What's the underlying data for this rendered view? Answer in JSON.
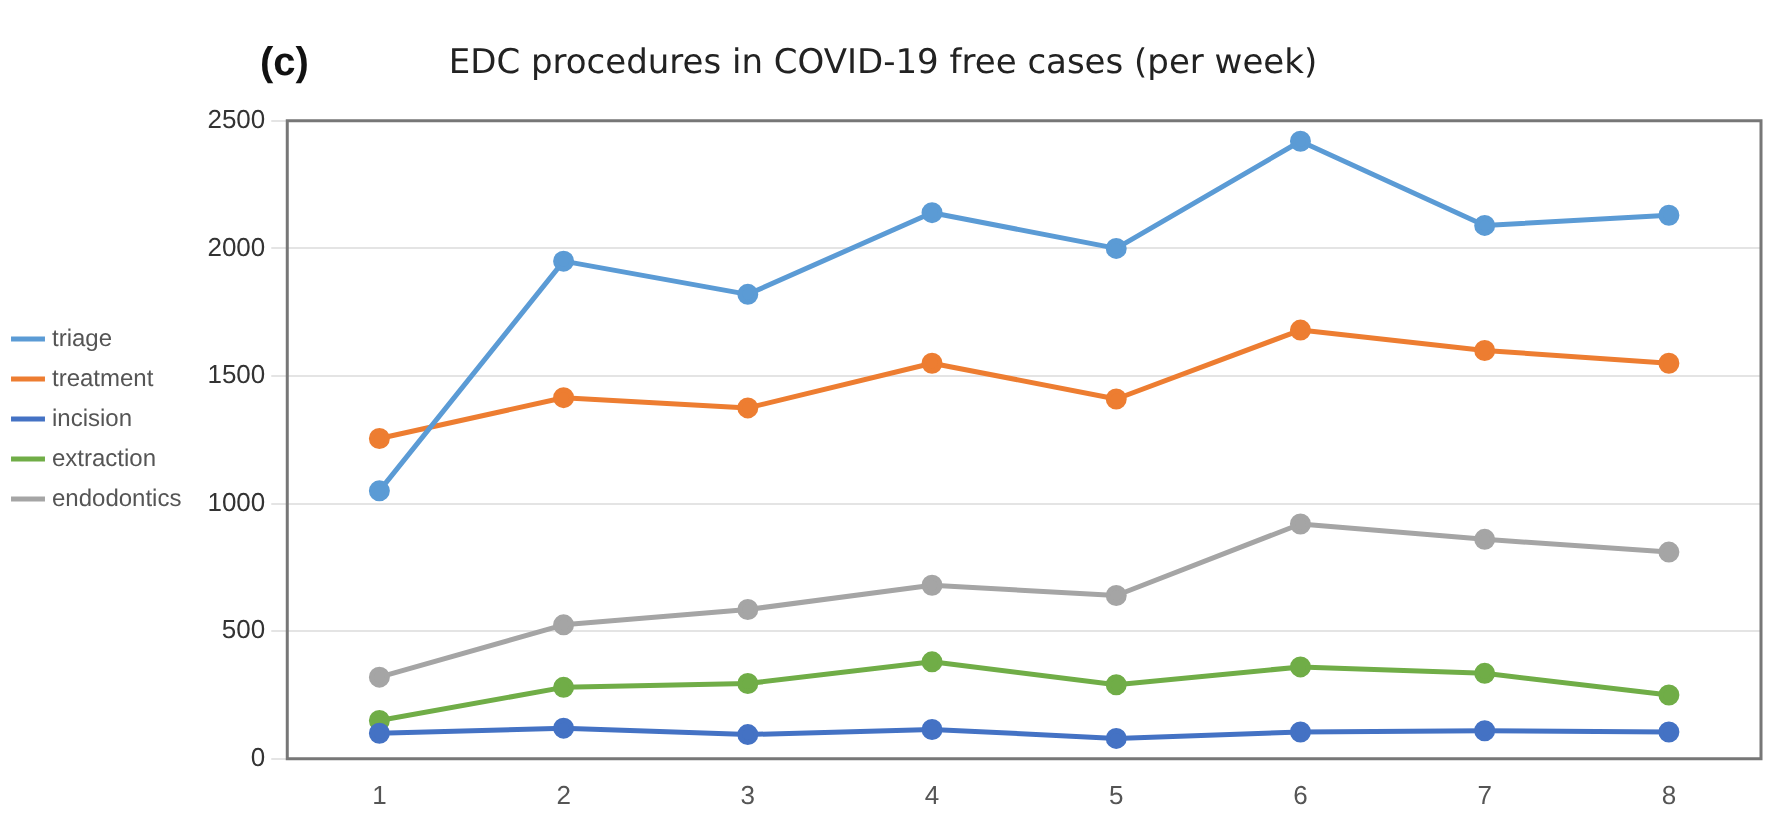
{
  "chart_data": {
    "type": "line",
    "title": "EDC procedures in COVID-19 free cases (per week)",
    "annotations": [
      "(c)"
    ],
    "categories": [
      "1",
      "2",
      "3",
      "4",
      "5",
      "6",
      "7",
      "8"
    ],
    "series": [
      {
        "name": "triage",
        "color": "#5b9bd5",
        "values": [
          1050,
          1950,
          1820,
          2140,
          2000,
          2420,
          2090,
          2130
        ]
      },
      {
        "name": "treatment",
        "color": "#ed7d31",
        "values": [
          1255,
          1415,
          1375,
          1550,
          1410,
          1680,
          1600,
          1550
        ]
      },
      {
        "name": "incision",
        "color": "#4472c4",
        "values": [
          100,
          120,
          95,
          115,
          80,
          105,
          110,
          105
        ]
      },
      {
        "name": "extraction",
        "color": "#70ad47",
        "values": [
          150,
          280,
          295,
          380,
          290,
          360,
          335,
          250
        ]
      },
      {
        "name": "endodontics",
        "color": "#a5a5a5",
        "values": [
          320,
          525,
          585,
          680,
          640,
          920,
          860,
          810
        ]
      }
    ],
    "ylim": [
      0,
      2500
    ],
    "yticks": [
      0,
      500,
      1000,
      1500,
      2000,
      2500
    ],
    "grid": "y",
    "legend": "left",
    "marker": "circle",
    "line_style": "solid"
  }
}
